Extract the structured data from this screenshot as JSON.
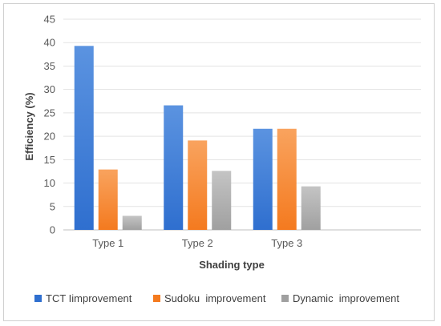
{
  "chart_data": {
    "type": "bar",
    "categories": [
      "Type 1",
      "Type 2",
      "Type 3",
      ""
    ],
    "series": [
      {
        "name": "TCT Iimprovement",
        "values": [
          39.3,
          26.6,
          21.6,
          null
        ],
        "color": "#2f6fcf",
        "color_light": "#5b93e0"
      },
      {
        "name": "Sudoku  improvement",
        "values": [
          12.9,
          19.1,
          21.6,
          null
        ],
        "color": "#f47a1f",
        "color_light": "#f9a35e"
      },
      {
        "name": "Dynamic  improvement",
        "values": [
          3.0,
          12.6,
          9.3,
          null
        ],
        "color": "#a0a0a0",
        "color_light": "#c4c4c4"
      }
    ],
    "xlabel": "Shading type",
    "ylabel": "Efficiency (%)",
    "ylim": [
      0,
      45
    ],
    "yticks": [
      0,
      5,
      10,
      15,
      20,
      25,
      30,
      35,
      40,
      45
    ],
    "grid": true,
    "legend_position": "bottom"
  }
}
